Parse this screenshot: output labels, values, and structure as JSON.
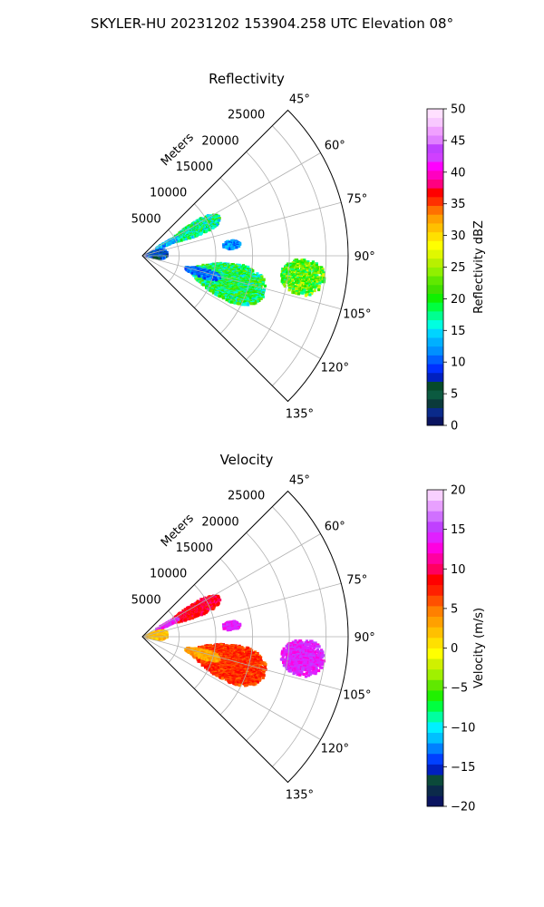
{
  "figure": {
    "suptitle": "SKYLER-HU  20231202  153904.258 UTC Elevation 08°"
  },
  "chart_data": [
    {
      "type": "heatmap",
      "subtype": "polar-sector-radar-ppi",
      "title": "Reflectivity",
      "radial_axis_label": "Meters",
      "radial_ticks": [
        5000,
        10000,
        15000,
        20000,
        25000
      ],
      "radial_tick_labels": [
        "5000",
        "10000",
        "15000",
        "20000",
        "25000"
      ],
      "rlim": [
        0,
        28000
      ],
      "angle_ticks": [
        45,
        60,
        75,
        90,
        105,
        120,
        135
      ],
      "angle_tick_labels": [
        "45°",
        "60°",
        "75°",
        "90°",
        "105°",
        "120°",
        "135°"
      ],
      "angle_range": [
        45,
        135
      ],
      "grid": true,
      "colorbar": {
        "label": "Reflectivity dBZ",
        "range": [
          0,
          50
        ],
        "ticks": [
          0,
          5,
          10,
          15,
          20,
          25,
          30,
          35,
          40,
          45,
          50
        ],
        "tick_labels": [
          "0",
          "5",
          "10",
          "15",
          "20",
          "25",
          "30",
          "35",
          "40",
          "45",
          "50"
        ],
        "colors": [
          "#0a1460",
          "#0a2a8a",
          "#0b3a3a",
          "#0b5a40",
          "#064a2a",
          "#0020c0",
          "#0030ff",
          "#0060ff",
          "#0090ff",
          "#00b0ff",
          "#00d4ff",
          "#00ffe0",
          "#00ff90",
          "#00ff40",
          "#10f000",
          "#40e000",
          "#60e800",
          "#90f000",
          "#b8f000",
          "#e0f800",
          "#ffff00",
          "#ffe000",
          "#ffc000",
          "#ffa000",
          "#ff7000",
          "#ff3000",
          "#ff0000",
          "#ff0080",
          "#ff00c0",
          "#ff00ff",
          "#d040ff",
          "#c040ff",
          "#e080ff",
          "#f0a0ff",
          "#f8c8ff",
          "#ffe0ff"
        ]
      },
      "echoes": [
        {
          "az": [
            57,
            70
          ],
          "r": [
            4200,
            11800
          ],
          "value": 18,
          "spread": 5
        },
        {
          "az": [
            60,
            67
          ],
          "r": [
            2000,
            5500
          ],
          "value": 14,
          "spread": 4
        },
        {
          "az": [
            80,
            86
          ],
          "r": [
            11000,
            13500
          ],
          "value": 12,
          "spread": 3
        },
        {
          "az": [
            91,
            104
          ],
          "r": [
            19000,
            25000
          ],
          "value": 22,
          "spread": 5
        },
        {
          "az": [
            95,
            118
          ],
          "r": [
            7000,
            17500
          ],
          "value": 19,
          "spread": 5
        },
        {
          "az": [
            102,
            110
          ],
          "r": [
            6000,
            11000
          ],
          "value": 11,
          "spread": 3
        },
        {
          "az": [
            70,
            100
          ],
          "r": [
            300,
            3500
          ],
          "value": 9,
          "spread": 4
        }
      ]
    },
    {
      "type": "heatmap",
      "subtype": "polar-sector-radar-ppi",
      "title": "Velocity",
      "radial_axis_label": "Meters",
      "radial_ticks": [
        5000,
        10000,
        15000,
        20000,
        25000
      ],
      "radial_tick_labels": [
        "5000",
        "10000",
        "15000",
        "20000",
        "25000"
      ],
      "rlim": [
        0,
        28000
      ],
      "angle_ticks": [
        45,
        60,
        75,
        90,
        105,
        120,
        135
      ],
      "angle_tick_labels": [
        "45°",
        "60°",
        "75°",
        "90°",
        "105°",
        "120°",
        "135°"
      ],
      "angle_range": [
        45,
        135
      ],
      "grid": true,
      "colorbar": {
        "label": "Velocity (m/s)",
        "range": [
          -20,
          20
        ],
        "ticks": [
          -20,
          -15,
          -10,
          -5,
          0,
          5,
          10,
          15,
          20
        ],
        "tick_labels": [
          "−20",
          "−15",
          "−10",
          "−5",
          "0",
          "5",
          "10",
          "15",
          "20"
        ],
        "colors": [
          "#0a1460",
          "#0b2a4a",
          "#0b4a3a",
          "#0020c0",
          "#0040ff",
          "#0080ff",
          "#00c0ff",
          "#00f0ff",
          "#00ffa0",
          "#00ff40",
          "#20f000",
          "#60e800",
          "#a0f000",
          "#d0f000",
          "#ffff00",
          "#ffe000",
          "#ffc000",
          "#ffa000",
          "#ff8000",
          "#ff5000",
          "#ff2000",
          "#ff0000",
          "#ff0060",
          "#ff00a0",
          "#ff00e0",
          "#e020ff",
          "#c040ff",
          "#d070ff",
          "#e8a0ff",
          "#f8d0ff"
        ]
      },
      "echoes": [
        {
          "az": [
            57,
            70
          ],
          "r": [
            4200,
            11800
          ],
          "value": 9,
          "spread": 2
        },
        {
          "az": [
            60,
            67
          ],
          "r": [
            2000,
            5500
          ],
          "value": 14,
          "spread": 2
        },
        {
          "az": [
            80,
            86
          ],
          "r": [
            11000,
            13500
          ],
          "value": 14,
          "spread": 1
        },
        {
          "az": [
            91,
            104
          ],
          "r": [
            19000,
            25000
          ],
          "value": 14,
          "spread": 1.5
        },
        {
          "az": [
            95,
            118
          ],
          "r": [
            7000,
            17500
          ],
          "value": 7,
          "spread": 2
        },
        {
          "az": [
            102,
            110
          ],
          "r": [
            6000,
            11000
          ],
          "value": 3,
          "spread": 1.5
        },
        {
          "az": [
            70,
            100
          ],
          "r": [
            300,
            3500
          ],
          "value": 2,
          "spread": 2
        }
      ]
    }
  ]
}
